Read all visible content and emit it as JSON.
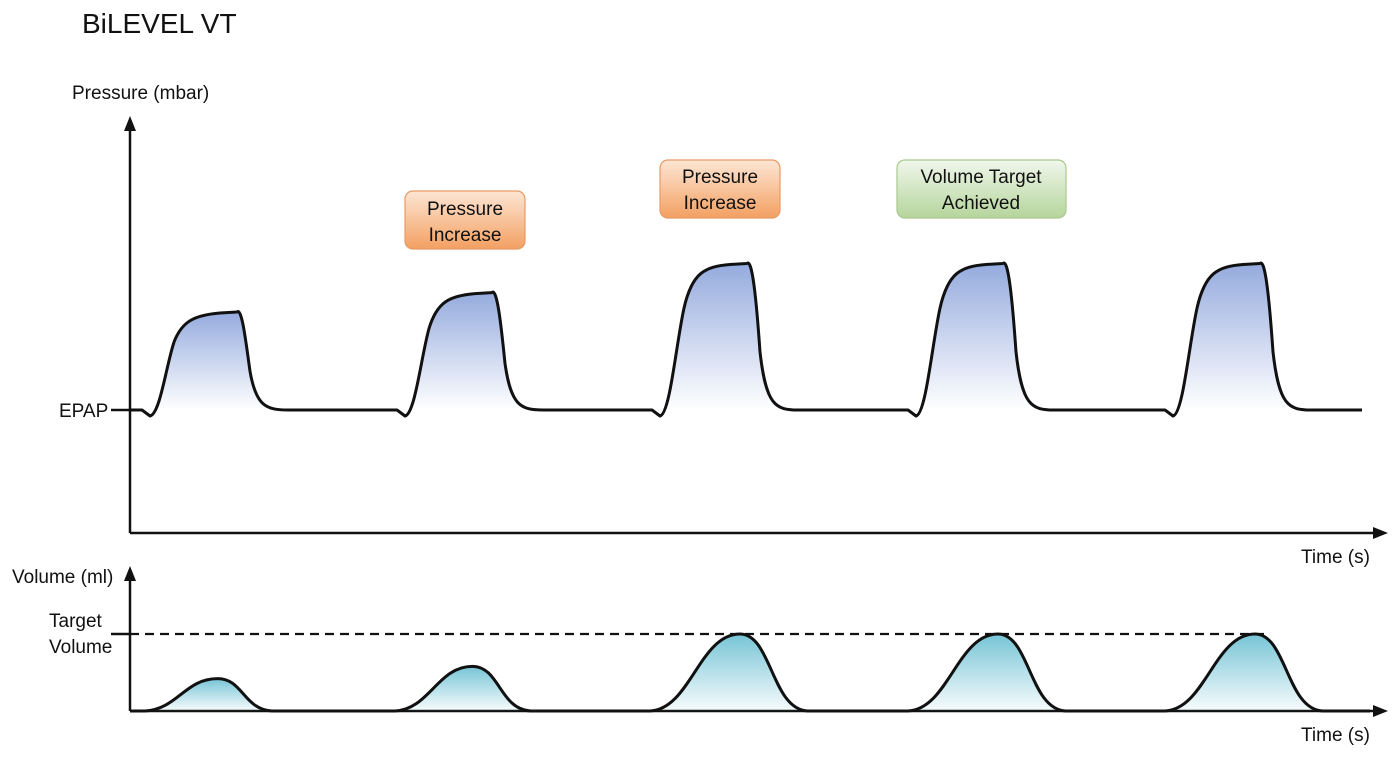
{
  "title": "BiLEVEL VT",
  "pressure_chart": {
    "y_label": "Pressure (mbar)",
    "x_label": "Time (s)",
    "baseline_label": "EPAP",
    "pressure_levels": [
      1,
      1.2,
      1.5,
      1.5,
      1.5
    ]
  },
  "volume_chart": {
    "y_label": "Volume (ml)",
    "x_label": "Time (s)",
    "target_label_line1": "Target",
    "target_label_line2": "Volume",
    "volume_levels": [
      0.42,
      0.58,
      1,
      1,
      1
    ]
  },
  "annotations": [
    {
      "line1": "Pressure",
      "line2": "Increase",
      "style": "orange",
      "breath": 1
    },
    {
      "line1": "Pressure",
      "line2": "Increase",
      "style": "orange",
      "breath": 2
    },
    {
      "line1": "Volume Target",
      "line2": "Achieved",
      "style": "green",
      "breath": 3
    }
  ],
  "colors": {
    "pressure_fill": "#8fa6dc",
    "volume_fill": "#6fc1d4",
    "orange_box": "#f6b07a",
    "green_box": "#c4ddb0",
    "line": "#111111"
  }
}
